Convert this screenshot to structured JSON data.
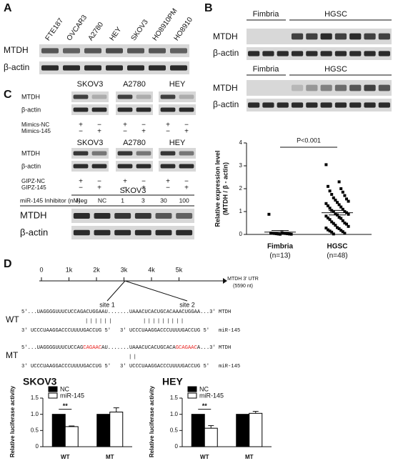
{
  "panels": {
    "a": {
      "label": "A",
      "lanes": [
        "FTE187",
        "OVCAR3",
        "A2780",
        "HEY",
        "SKOV3",
        "HO8910PM",
        "HO8910"
      ],
      "rows": [
        "MTDH",
        "β-actin"
      ]
    },
    "b": {
      "label": "B",
      "blots": [
        {
          "groups": [
            "Fimbria",
            "HGSC"
          ],
          "rows": [
            "MTDH",
            "β-actin"
          ]
        },
        {
          "groups": [
            "Fimbria",
            "HGSC"
          ],
          "rows": [
            "MTDH",
            "β-actin"
          ]
        }
      ]
    },
    "c": {
      "label": "C",
      "blots": [
        {
          "cells": [
            "SKOV3",
            "A2780",
            "HEY"
          ],
          "rows": [
            "MTDH",
            "β-actin"
          ],
          "treatments": [
            {
              "name": "Mimics-NC",
              "marks": [
                "+",
                "−",
                "+",
                "−",
                "+",
                "−"
              ]
            },
            {
              "name": "Mimics-145",
              "marks": [
                "−",
                "+",
                "−",
                "+",
                "−",
                "+"
              ]
            }
          ]
        },
        {
          "cells": [
            "SKOV3",
            "A2780",
            "HEY"
          ],
          "rows": [
            "MTDH",
            "β-actin"
          ],
          "treatments": [
            {
              "name": "GIPZ-NC",
              "marks": [
                "+",
                "−",
                "+",
                "−",
                "+",
                "−"
              ]
            },
            {
              "name": "GIPZ-145",
              "marks": [
                "−",
                "+",
                "−",
                "+",
                "−",
                "+"
              ]
            }
          ]
        }
      ],
      "inhibitor": {
        "cell": "SKOV3",
        "label": "miR-145 Inhibitor (nM)",
        "doses": [
          "Neg",
          "NC",
          "1",
          "3",
          "30",
          "100"
        ],
        "rows": [
          "MTDH",
          "β-actin"
        ]
      }
    },
    "d": {
      "label": "D",
      "axis_ticks": [
        "0",
        "1k",
        "2k",
        "3k",
        "4k",
        "5k"
      ],
      "utr": "MTDH 3' UTR",
      "length": "(5590 nt)",
      "sites": [
        "site 1",
        "site 2"
      ],
      "wt": {
        "label": "WT",
        "target": [
          {
            "text": "5'...UAGGGGUUUCUCCAGACUGGAAU.......UAAACUCACUGCACAAACUGGAA...3'"
          }
        ],
        "target_name": "MTDH",
        "pairs": [
          "||||||",
          "|||||||||"
        ],
        "mir": [
          "3' UCCCUAAGGACCCUUUUGACCUG 5'",
          "3' UCCCUAAGGACCCUUUUGACCUG 5'"
        ],
        "mir_name": "miR-145"
      },
      "mt": {
        "label": "MT",
        "target": [
          {
            "text": "5'...UAGGGGUUUCUCCAG"
          },
          {
            "text": "CAGAAC",
            "color": "#e8201e"
          },
          {
            "text": "AU.......UAAACUCACUGCACA"
          },
          {
            "text": "GCAGAAC",
            "color": "#e8201e"
          },
          {
            "text": "A...3'"
          }
        ],
        "target_name": "MTDH",
        "pairs": [
          "||"
        ],
        "mir": [
          "3' UCCCUAAGGACCCUUUUGACCUG 5'",
          "3' UCCCUAAGGACCCUUUUGACCUG 5'"
        ],
        "mir_name": "miR-145"
      }
    }
  },
  "chart_data": [
    {
      "type": "scatter",
      "y_label": [
        "Relative expression level",
        "(MTDH / β - actin)"
      ],
      "categories": [
        "Fimbria",
        "HGSC"
      ],
      "category_sizes": [
        "(n=13)",
        "(n=48)"
      ],
      "groups": [
        [
          0.88,
          0.08,
          0.06,
          0.05,
          0.05,
          0.04,
          0.04,
          0.03,
          0.03,
          0.02,
          0.02,
          0.01,
          0.01
        ],
        [
          3.05,
          2.3,
          2.1,
          2.0,
          1.9,
          1.85,
          1.75,
          1.7,
          1.6,
          1.55,
          1.5,
          1.45,
          1.4,
          1.35,
          1.3,
          1.25,
          1.2,
          1.15,
          1.1,
          1.05,
          1.0,
          1.0,
          0.95,
          0.9,
          0.88,
          0.85,
          0.8,
          0.75,
          0.72,
          0.7,
          0.65,
          0.6,
          0.55,
          0.5,
          0.48,
          0.45,
          0.4,
          0.35,
          0.3,
          0.28,
          0.25,
          0.2,
          0.18,
          0.15,
          0.12,
          0.1,
          0.05,
          0.02
        ]
      ],
      "means": [
        0.1,
        0.95
      ],
      "sem": [
        0.07,
        0.1
      ],
      "ylim": [
        0,
        4
      ],
      "yticks": [
        0,
        1,
        2,
        3,
        4
      ],
      "annotation": "P<0.001",
      "color": "#000000"
    },
    {
      "type": "bar",
      "title": "SKOV3",
      "y_label": "Relative luciferase activity",
      "categories": [
        "WT",
        "MT"
      ],
      "series": [
        {
          "name": "NC",
          "color": "#000000",
          "values": [
            1.0,
            1.0
          ]
        },
        {
          "name": "miR-145",
          "color": "#ffffff",
          "values": [
            0.62,
            1.07
          ],
          "errors": [
            0.02,
            0.13
          ]
        }
      ],
      "ylim": [
        0,
        1.5
      ],
      "yticks": [
        0,
        0.5,
        {
          "value": 1,
          "label": "1.0"
        },
        1.5
      ],
      "annotation": "**"
    },
    {
      "type": "bar",
      "title": "HEY",
      "y_label": "Relative luciferase activity",
      "categories": [
        "WT",
        "MT"
      ],
      "series": [
        {
          "name": "NC",
          "color": "#000000",
          "values": [
            1.0,
            1.0
          ]
        },
        {
          "name": "miR-145",
          "color": "#ffffff",
          "values": [
            0.57,
            1.03
          ],
          "errors": [
            0.08,
            0.06
          ]
        }
      ],
      "ylim": [
        0,
        1.5
      ],
      "yticks": [
        0,
        0.5,
        {
          "value": 1,
          "label": "1.0"
        },
        1.5
      ],
      "annotation": "**"
    }
  ]
}
